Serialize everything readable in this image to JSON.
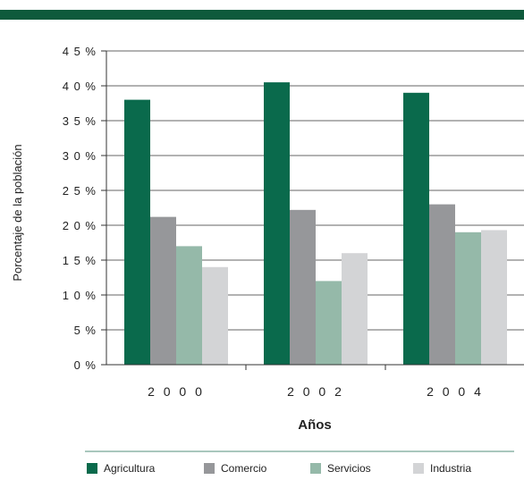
{
  "colors": {
    "header_bar": "#0e5a3c",
    "gridline": "#333333",
    "legend_rule": "#a9c7bd"
  },
  "chart_data": {
    "type": "bar",
    "categories": [
      "2000",
      "2002",
      "2004"
    ],
    "series": [
      {
        "name": "Agricultura",
        "color": "#0a6a4c",
        "values": [
          38,
          40.5,
          39
        ]
      },
      {
        "name": "Comercio",
        "color": "#96979a",
        "values": [
          21.2,
          22.2,
          23
        ]
      },
      {
        "name": "Servicios",
        "color": "#95b9a9",
        "values": [
          17,
          12,
          19
        ]
      },
      {
        "name": "Industria",
        "color": "#d3d4d6",
        "values": [
          14,
          16,
          19.3
        ]
      }
    ],
    "ylim": [
      0,
      45
    ],
    "yticks": [
      0,
      5,
      10,
      15,
      20,
      25,
      30,
      35,
      40,
      45
    ],
    "ytick_labels": [
      "0 %",
      "5 %",
      "1 0 %",
      "1 5 %",
      "2 0 %",
      "2 5 %",
      "3 0 %",
      "3 5 %",
      "4 0 %",
      "4 5 %"
    ],
    "xcat_labels": [
      "2 0 0 0",
      "2 0 0 2",
      "2 0 0 4"
    ],
    "xlabel": "Años",
    "ylabel": "Porcentaje de la población",
    "grid": true,
    "legend": "bottom"
  }
}
